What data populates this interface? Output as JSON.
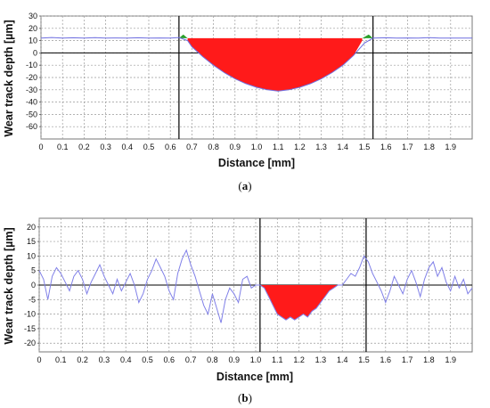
{
  "chart_data": [
    {
      "type": "line",
      "caption_open": "(",
      "caption_letter": "a",
      "caption_close": ")",
      "xlabel": "Distance [mm]",
      "ylabel": "Wear track depth [µm]",
      "xlim": [
        0,
        2.0
      ],
      "ylim": [
        -70,
        30
      ],
      "xticks": [
        "0",
        "0.1",
        "0.2",
        "0.3",
        "0.4",
        "0.5",
        "0.6",
        "0.7",
        "0.8",
        "0.9",
        "1.0",
        "1.1",
        "1.2",
        "1.3",
        "1.4",
        "1.5",
        "1.6",
        "1.7",
        "1.8",
        "1.9"
      ],
      "yticks": [
        "30",
        "20",
        "10",
        "0",
        "-10",
        "-20",
        "-30",
        "-40",
        "-50",
        "-60"
      ],
      "grid": true,
      "markers_x": [
        0.64,
        1.54
      ],
      "profile": {
        "x": [
          0,
          0.05,
          0.1,
          0.15,
          0.2,
          0.25,
          0.3,
          0.35,
          0.4,
          0.45,
          0.5,
          0.55,
          0.6,
          0.64,
          0.68,
          0.7,
          0.75,
          0.8,
          0.85,
          0.9,
          0.95,
          1.0,
          1.05,
          1.1,
          1.15,
          1.2,
          1.25,
          1.3,
          1.35,
          1.4,
          1.45,
          1.5,
          1.54,
          1.6,
          1.65,
          1.7,
          1.75,
          1.8,
          1.85,
          1.9,
          1.95,
          2.0
        ],
        "y": [
          12,
          12.5,
          12,
          12.3,
          12,
          12.4,
          12.1,
          12.2,
          12,
          12.3,
          12,
          12.2,
          12,
          12.5,
          10,
          5,
          -3,
          -10,
          -16,
          -21,
          -25,
          -28,
          -30,
          -31,
          -30,
          -28,
          -25,
          -21,
          -16,
          -10,
          -2,
          8,
          12,
          12.3,
          12,
          12.2,
          12,
          12.4,
          12,
          12.1,
          12,
          12
        ]
      },
      "worn_area": {
        "x": [
          0.68,
          0.7,
          0.75,
          0.8,
          0.85,
          0.9,
          0.95,
          1.0,
          1.05,
          1.1,
          1.15,
          1.2,
          1.25,
          1.3,
          1.35,
          1.4,
          1.45,
          1.49
        ],
        "top": 12,
        "bottom": [
          10,
          5,
          -3,
          -10,
          -16,
          -21,
          -25,
          -28,
          -30,
          -31,
          -30,
          -28,
          -25,
          -21,
          -16,
          -10,
          -2,
          10
        ]
      },
      "pileup": [
        {
          "x": [
            0.64,
            0.66,
            0.68
          ],
          "y": [
            12,
            15,
            12
          ]
        },
        {
          "x": [
            1.49,
            1.52,
            1.54
          ],
          "y": [
            12,
            15,
            12
          ]
        }
      ],
      "colors": {
        "profile": "#6f6fe0",
        "worn": "#ff1a1a",
        "pileup": "#2aa02a",
        "marker": "#000000"
      }
    },
    {
      "type": "line",
      "caption_open": "(",
      "caption_letter": "b",
      "caption_close": ")",
      "xlabel": "Distance [mm]",
      "ylabel": "Wear track depth [µm]",
      "xlim": [
        0,
        2.0
      ],
      "ylim": [
        -23,
        23
      ],
      "xticks": [
        "0",
        "0.1",
        "0.2",
        "0.3",
        "0.4",
        "0.5",
        "0.6",
        "0.7",
        "0.8",
        "0.9",
        "1.0",
        "1.1",
        "1.2",
        "1.3",
        "1.4",
        "1.5",
        "1.6",
        "1.7",
        "1.8",
        "1.9"
      ],
      "yticks": [
        "20",
        "15",
        "10",
        "5",
        "0",
        "-5",
        "-10",
        "-15",
        "-20"
      ],
      "grid": true,
      "markers_x": [
        1.02,
        1.51
      ],
      "profile": {
        "x": [
          0,
          0.02,
          0.04,
          0.06,
          0.08,
          0.1,
          0.12,
          0.14,
          0.16,
          0.18,
          0.2,
          0.22,
          0.24,
          0.26,
          0.28,
          0.3,
          0.32,
          0.34,
          0.36,
          0.38,
          0.4,
          0.42,
          0.44,
          0.46,
          0.48,
          0.5,
          0.52,
          0.54,
          0.56,
          0.58,
          0.6,
          0.62,
          0.64,
          0.66,
          0.68,
          0.7,
          0.72,
          0.74,
          0.76,
          0.78,
          0.8,
          0.82,
          0.84,
          0.86,
          0.88,
          0.9,
          0.92,
          0.94,
          0.96,
          0.98,
          1.0,
          1.02,
          1.04,
          1.06,
          1.08,
          1.1,
          1.12,
          1.14,
          1.16,
          1.18,
          1.2,
          1.22,
          1.24,
          1.26,
          1.28,
          1.3,
          1.32,
          1.34,
          1.36,
          1.38,
          1.4,
          1.42,
          1.44,
          1.46,
          1.48,
          1.5,
          1.52,
          1.54,
          1.56,
          1.58,
          1.6,
          1.62,
          1.64,
          1.66,
          1.68,
          1.7,
          1.72,
          1.74,
          1.76,
          1.78,
          1.8,
          1.82,
          1.84,
          1.86,
          1.88,
          1.9,
          1.92,
          1.94,
          1.96,
          1.98,
          2.0
        ],
        "y": [
          5,
          2,
          -5,
          3,
          6,
          4,
          1,
          -2,
          3,
          5,
          2,
          -3,
          1,
          4,
          7,
          3,
          0,
          -3,
          2,
          -2,
          1,
          4,
          0,
          -6,
          -3,
          2,
          5,
          9,
          6,
          3,
          -2,
          -5,
          4,
          9,
          12,
          7,
          3,
          -2,
          -7,
          -10,
          -3,
          -8,
          -13,
          -5,
          -1,
          -3,
          -6,
          2,
          3,
          -1,
          0,
          0,
          -1,
          -4,
          -7,
          -10,
          -11,
          -12,
          -11,
          -12,
          -11,
          -10,
          -11,
          -9,
          -8,
          -6,
          -4,
          -2,
          -1,
          0,
          0,
          2,
          4,
          3,
          6,
          10,
          8,
          4,
          1,
          -2,
          -6,
          -2,
          3,
          0,
          -3,
          2,
          5,
          1,
          -4,
          2,
          6,
          8,
          3,
          6,
          1,
          -2,
          3,
          -1,
          2,
          -3,
          -1
        ]
      },
      "worn_area": {
        "x": [
          1.02,
          1.04,
          1.06,
          1.08,
          1.1,
          1.12,
          1.14,
          1.16,
          1.18,
          1.2,
          1.22,
          1.24,
          1.26,
          1.28,
          1.3,
          1.32,
          1.34,
          1.36,
          1.38,
          1.4
        ],
        "top": 0,
        "bottom": [
          0,
          -1,
          -4,
          -7,
          -10,
          -11,
          -12,
          -11,
          -12,
          -11,
          -10,
          -11,
          -9,
          -8,
          -6,
          -4,
          -2,
          -1,
          0,
          0
        ]
      },
      "colors": {
        "profile": "#8080e8",
        "worn": "#ff1a1a",
        "marker": "#000000"
      }
    }
  ]
}
